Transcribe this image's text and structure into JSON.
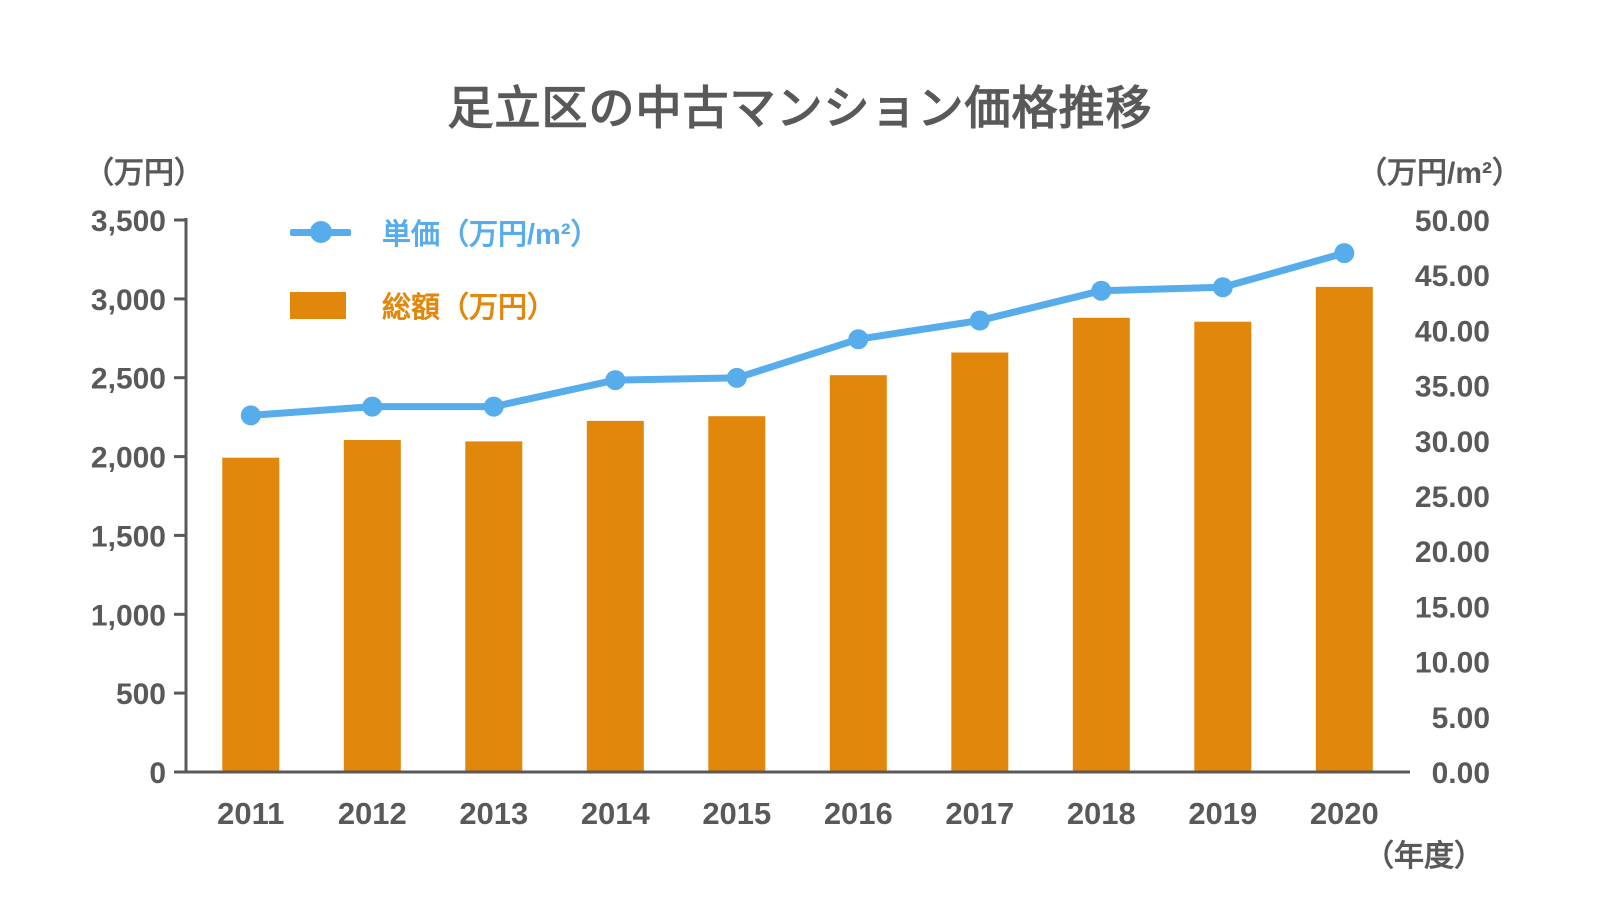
{
  "page": {
    "background": "#ffffff",
    "text_color": "#595959",
    "axis_color": "#595959"
  },
  "chart_data": {
    "type": "combo",
    "title": "足立区の中古マンション価格推移",
    "categories": [
      "2011",
      "2012",
      "2013",
      "2014",
      "2015",
      "2016",
      "2017",
      "2018",
      "2019",
      "2020"
    ],
    "series": [
      {
        "name": "単価（万円/m²）",
        "type": "line",
        "axis": "right",
        "color": "#57ACEC",
        "values": [
          32.3,
          33.1,
          33.1,
          35.5,
          35.7,
          39.2,
          40.9,
          43.6,
          43.9,
          47.0
        ]
      },
      {
        "name": "総額（万円）",
        "type": "bar",
        "axis": "left",
        "color": "#E1870B",
        "values": [
          1993,
          2105,
          2096,
          2226,
          2256,
          2516,
          2660,
          2880,
          2855,
          3076
        ]
      }
    ],
    "left_axis": {
      "unit_label": "（万円）",
      "min": 0,
      "max": 3500,
      "tick_step": 500,
      "tick_values": [
        0,
        500,
        1000,
        1500,
        2000,
        2500,
        3000,
        3500
      ],
      "tick_labels": [
        "0",
        "500",
        "1,000",
        "1,500",
        "2,000",
        "2,500",
        "3,000",
        "3,500"
      ]
    },
    "right_axis": {
      "unit_label": "（万円/m²）",
      "min": 0,
      "max": 50,
      "tick_step": 5,
      "tick_values": [
        0,
        5,
        10,
        15,
        20,
        25,
        30,
        35,
        40,
        45,
        50
      ],
      "tick_labels": [
        "0.00",
        "5.00",
        "10.00",
        "15.00",
        "20.00",
        "25.00",
        "30.00",
        "35.00",
        "40.00",
        "45.00",
        "50.00"
      ]
    },
    "x_axis": {
      "unit_label": "（年度）"
    },
    "legend_position": "top-left-inside",
    "grid": "off"
  }
}
